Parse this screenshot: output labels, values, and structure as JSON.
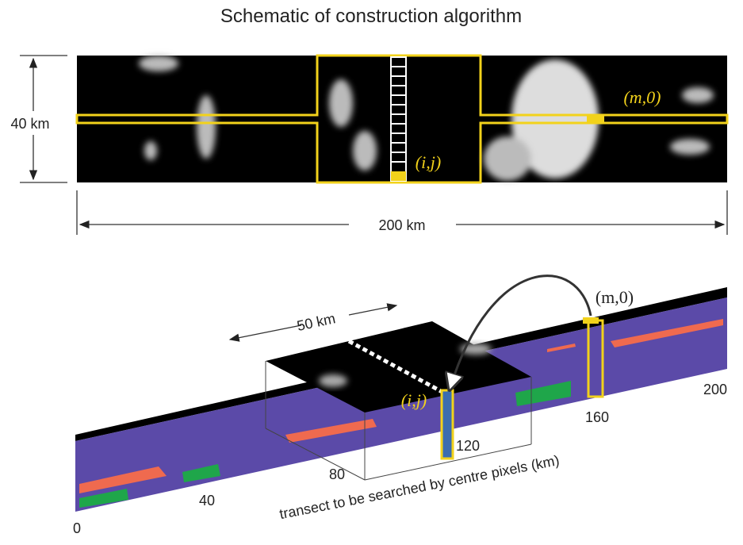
{
  "title": "Schematic of construction algorithm",
  "top_panel": {
    "height_label": "40 km",
    "width_label": "200 km",
    "far_pixel": "(m,0)",
    "centre_pixel": "(i,j)"
  },
  "bottom_panel": {
    "swath_label": "50 km",
    "centre_pixel": "(i,j)",
    "far_pixel": "(m,0)",
    "ticks": [
      0,
      40,
      80,
      120,
      160,
      200
    ],
    "axis_label": "transect to be searched by centre pixels (km)"
  }
}
